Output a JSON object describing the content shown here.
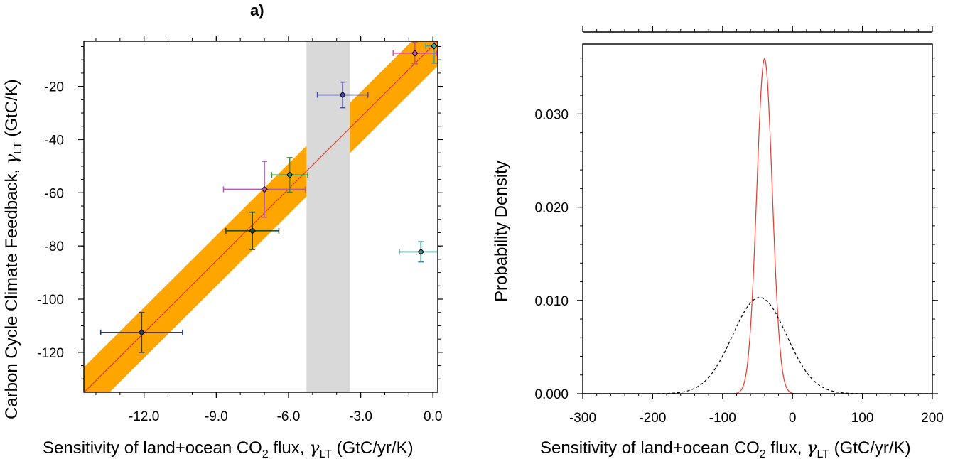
{
  "chart_data": [
    {
      "panel": "a)",
      "type": "scatter",
      "xlabel": {
        "prefix": "Sensitivity of land+ocean CO",
        "sub": "2",
        "middle": " flux, ",
        "symbol": "γ",
        "symbol_sub": "LT",
        "suffix": " (GtC/yr/K)"
      },
      "ylabel": {
        "prefix": "Carbon Cycle Climate Feedback, ",
        "symbol": "γ",
        "symbol_sub": "LT",
        "suffix": " (GtC/K)"
      },
      "xlim": [
        -14.5,
        0.2
      ],
      "ylim": [
        -135,
        -3
      ],
      "xticks": [
        -12.0,
        -9.0,
        -6.0,
        -3.0,
        0.0
      ],
      "xtick_labels": [
        "-12.0",
        "-9.0",
        "-6.0",
        "-3.0",
        "0.0"
      ],
      "yticks": [
        -20,
        -40,
        -60,
        -80,
        -100,
        -120
      ],
      "ytick_labels": [
        "-20",
        "-40",
        "-60",
        "-80",
        "-100",
        "-120"
      ],
      "shaded_x_range": [
        -5.25,
        -3.45
      ],
      "regression": {
        "slope": 9.0,
        "intercept": -4.6,
        "band_halfwidth": 9.5,
        "line_color": "#e8392b",
        "band_color": "#ffa500"
      },
      "points": [
        {
          "x": -12.1,
          "y": -112.5,
          "xerr": 1.7,
          "yerr": 7.5,
          "color": "#2b3a77"
        },
        {
          "x": -7.5,
          "y": -74.3,
          "xerr": 1.1,
          "yerr": 7.0,
          "color": "#1f4a2e"
        },
        {
          "x": -7.0,
          "y": -58.7,
          "xerr": 1.7,
          "yerr": 10.5,
          "color": "#b45ab4"
        },
        {
          "x": -5.95,
          "y": -53.3,
          "xerr": 0.75,
          "yerr": 6.5,
          "color": "#3c8c3c"
        },
        {
          "x": -3.75,
          "y": -23.2,
          "xerr": 1.05,
          "yerr": 4.8,
          "color": "#4a4ab0"
        },
        {
          "x": -0.75,
          "y": -7.5,
          "xerr": 0.9,
          "yerr": 4.0,
          "color": "#d04aa0"
        },
        {
          "x": 0.05,
          "y": -4.8,
          "xerr": 0.35,
          "yerr": 6.5,
          "color": "#4aa0a0"
        },
        {
          "x": -0.5,
          "y": -82.2,
          "xerr": 0.9,
          "yerr": 3.8,
          "color": "#3e8c8c"
        }
      ]
    },
    {
      "type": "line",
      "xlabel": {
        "prefix": "Sensitivity of land+ocean CO",
        "sub": "2",
        "middle": " flux, ",
        "symbol": "γ",
        "symbol_sub": "LT",
        "suffix": " (GtC/yr/K)"
      },
      "ylabel": "Probability Density",
      "xlim": [
        -300,
        200
      ],
      "ylim": [
        0,
        0.0375
      ],
      "xticks": [
        -300,
        -200,
        -100,
        0,
        100,
        200
      ],
      "xtick_labels": [
        "-300",
        "-200",
        "-100",
        "0",
        "100",
        "200"
      ],
      "yticks": [
        0.0,
        0.01,
        0.02,
        0.03
      ],
      "ytick_labels": [
        "0.000",
        "0.010",
        "0.020",
        "0.030"
      ],
      "series": [
        {
          "kind": "gaussian",
          "mean": -40,
          "sd": 11.1,
          "style": "solid",
          "color": "#e8392b"
        },
        {
          "kind": "gaussian",
          "mean": -47,
          "sd": 38.7,
          "style": "dashed",
          "color": "#000000"
        }
      ]
    }
  ]
}
